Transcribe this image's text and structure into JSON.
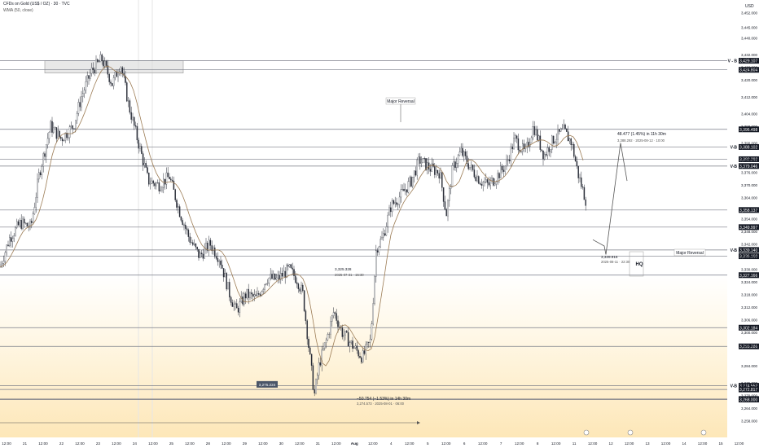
{
  "header": {
    "symbol": "CFDs on Gold (US$ / OZ) · 30 · TVC",
    "indicator": "WMA (50, close)"
  },
  "axis": {
    "currency": "USD"
  },
  "colors": {
    "candle": "#2a2e39",
    "wma": "#9c7c55",
    "level": "#787b86",
    "zone_top": "#ffffff",
    "zone_bottom": "#fde7b8"
  },
  "chart_data": {
    "type": "candlestick",
    "title": "CFDs on Gold (US$ / OZ) · 30 · TVC",
    "ylabel": "USD",
    "ylim": [
      3250,
      3458
    ],
    "x_ticks": [
      "12:00",
      "21",
      "12:00",
      "22",
      "12:00",
      "23",
      "12:00",
      "24",
      "12:00",
      "25",
      "12:00",
      "28",
      "12:00",
      "29",
      "12:00",
      "30",
      "12:00",
      "31",
      "12:00",
      "Aug",
      "12:00",
      "4",
      "12:00",
      "5",
      "12:00",
      "6",
      "12:00",
      "7",
      "12:00",
      "8",
      "12:00",
      "11",
      "12:00",
      "12",
      "12:00",
      "13",
      "12:00",
      "14",
      "12:00",
      "15",
      "12:00"
    ],
    "y_ticks": [
      3258,
      3264,
      3270,
      3276,
      3284,
      3294,
      3300,
      3306,
      3312,
      3318,
      3324,
      3330,
      3336,
      3342,
      3348,
      3354,
      3364,
      3370,
      3376,
      3382,
      3390,
      3398,
      3404,
      3412,
      3420,
      3426,
      3432,
      3440,
      3445,
      3452
    ],
    "price_levels": [
      {
        "label": "3,429.107",
        "value": 3429.107,
        "tag": "V - B"
      },
      {
        "label": "3,424.804",
        "value": 3424.804,
        "tag": ""
      },
      {
        "label": "3,396.498",
        "value": 3396.498,
        "tag": ""
      },
      {
        "label": "3,388.102",
        "value": 3388.102,
        "tag": "V-B"
      },
      {
        "label": "3,382.292",
        "value": 3382.292,
        "tag": ""
      },
      {
        "label": "3,379.046",
        "value": 3379.046,
        "tag": "V-B"
      },
      {
        "label": "3,358.137",
        "value": 3358.137,
        "tag": ""
      },
      {
        "label": "3,349.997",
        "value": 3349.997,
        "tag": ""
      },
      {
        "label": "3,339.140",
        "value": 3339.14,
        "tag": "V-B"
      },
      {
        "label": "3,336.160",
        "value": 3336.16,
        "tag": ""
      },
      {
        "label": "3,327.166",
        "value": 3327.166,
        "tag": ""
      },
      {
        "label": "3,302.184",
        "value": 3302.184,
        "tag": ""
      },
      {
        "label": "3,293.286",
        "value": 3293.286,
        "tag": ""
      },
      {
        "label": "3,274.552",
        "value": 3274.552,
        "tag": "V-B"
      },
      {
        "label": "3,272.817",
        "value": 3272.817,
        "tag": ""
      },
      {
        "label": "3,268.250",
        "value": 3268.25,
        "tag": ""
      },
      {
        "label": "3,268.000",
        "value": 3268.0,
        "tag": ""
      }
    ],
    "price_path": [
      [
        0,
        3331
      ],
      [
        12,
        3345
      ],
      [
        25,
        3352
      ],
      [
        38,
        3350
      ],
      [
        48,
        3375
      ],
      [
        62,
        3398
      ],
      [
        75,
        3392
      ],
      [
        90,
        3398
      ],
      [
        100,
        3412
      ],
      [
        112,
        3424
      ],
      [
        125,
        3430
      ],
      [
        138,
        3418
      ],
      [
        148,
        3428
      ],
      [
        158,
        3408
      ],
      [
        170,
        3390
      ],
      [
        182,
        3372
      ],
      [
        195,
        3370
      ],
      [
        208,
        3374
      ],
      [
        220,
        3358
      ],
      [
        232,
        3345
      ],
      [
        245,
        3336
      ],
      [
        258,
        3342
      ],
      [
        270,
        3335
      ],
      [
        282,
        3318
      ],
      [
        290,
        3310
      ],
      [
        302,
        3318
      ],
      [
        315,
        3316
      ],
      [
        328,
        3326
      ],
      [
        340,
        3325
      ],
      [
        355,
        3330
      ],
      [
        365,
        3325
      ],
      [
        372,
        3318
      ],
      [
        380,
        3290
      ],
      [
        386,
        3270
      ],
      [
        392,
        3285
      ],
      [
        400,
        3295
      ],
      [
        410,
        3310
      ],
      [
        420,
        3300
      ],
      [
        432,
        3294
      ],
      [
        445,
        3288
      ],
      [
        455,
        3296
      ],
      [
        462,
        3340
      ],
      [
        470,
        3345
      ],
      [
        480,
        3360
      ],
      [
        492,
        3365
      ],
      [
        505,
        3372
      ],
      [
        515,
        3382
      ],
      [
        528,
        3378
      ],
      [
        540,
        3376
      ],
      [
        548,
        3356
      ],
      [
        556,
        3378
      ],
      [
        566,
        3386
      ],
      [
        578,
        3378
      ],
      [
        590,
        3372
      ],
      [
        600,
        3370
      ],
      [
        612,
        3375
      ],
      [
        622,
        3380
      ],
      [
        632,
        3392
      ],
      [
        645,
        3385
      ],
      [
        655,
        3398
      ],
      [
        668,
        3384
      ],
      [
        680,
        3392
      ],
      [
        692,
        3396
      ],
      [
        702,
        3390
      ],
      [
        710,
        3375
      ],
      [
        720,
        3362
      ]
    ],
    "annotations": [
      {
        "text": "Major Reversal",
        "type": "label"
      },
      {
        "text": "Major Reversal",
        "type": "label"
      },
      {
        "text": "HQ",
        "type": "label"
      },
      {
        "text": "48.477 (1.45%) in 11h 30m",
        "type": "measure"
      },
      {
        "text": "3,388.292 · 2025-08-12 · 10:00",
        "type": "measure"
      },
      {
        "text": "3,325.328",
        "type": "measure"
      },
      {
        "text": "2025-07-31 · 15:30",
        "type": "measure"
      },
      {
        "text": "3,339.915",
        "type": "measure"
      },
      {
        "text": "2025-08-11 · 22:30",
        "type": "measure"
      },
      {
        "text": "−50.754 (−1.53%) in 14h 30m",
        "type": "measure"
      },
      {
        "text": "3,274.573 · 2025-08-01 · 06:00",
        "type": "measure"
      },
      {
        "text": "3,275.224",
        "type": "price_tag"
      }
    ],
    "grid": false,
    "legend": "none"
  }
}
